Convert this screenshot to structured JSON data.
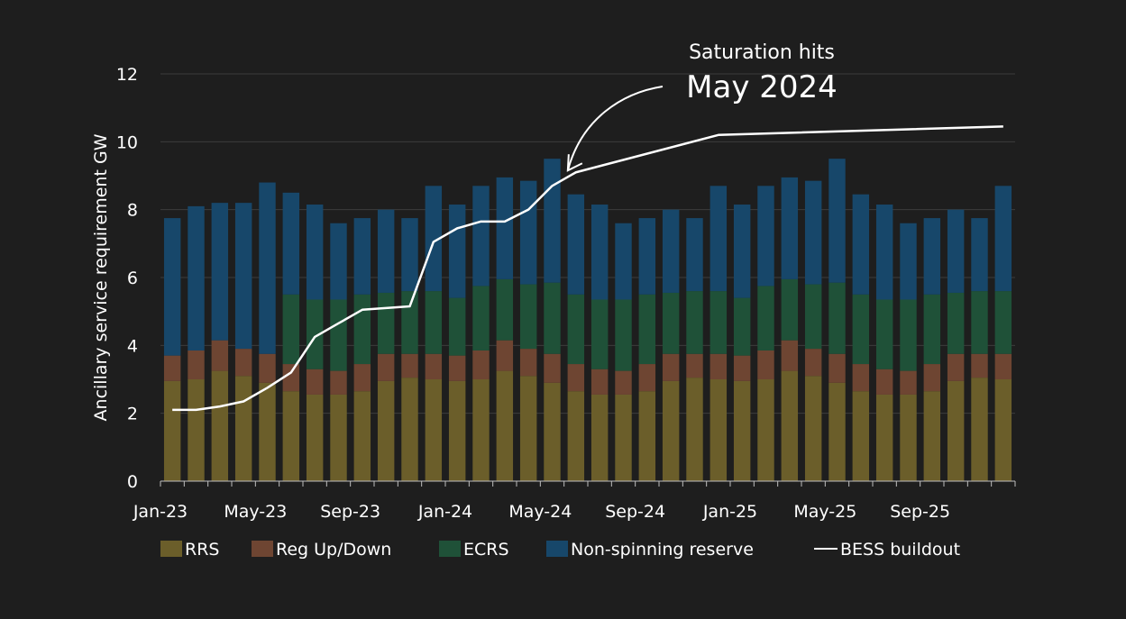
{
  "chart_data": {
    "type": "bar",
    "stacked": true,
    "ylabel": "Ancillary service requirement GW",
    "ylim": [
      0,
      12
    ],
    "yticks": [
      0,
      2,
      4,
      6,
      8,
      10,
      12
    ],
    "grid": true,
    "legend_position": "bottom",
    "categories": [
      "Jan-23",
      "Feb-23",
      "Mar-23",
      "Apr-23",
      "May-23",
      "Jun-23",
      "Jul-23",
      "Aug-23",
      "Sep-23",
      "Oct-23",
      "Nov-23",
      "Dec-23",
      "Jan-24",
      "Feb-24",
      "Mar-24",
      "Apr-24",
      "May-24",
      "Jun-24",
      "Jul-24",
      "Aug-24",
      "Sep-24",
      "Oct-24",
      "Nov-24",
      "Dec-24",
      "Jan-25",
      "Feb-25",
      "Mar-25",
      "Apr-25",
      "May-25",
      "Jun-25",
      "Jul-25",
      "Aug-25",
      "Sep-25",
      "Oct-25",
      "Nov-25",
      "Dec-25"
    ],
    "x_tick_labels": [
      {
        "index": 0,
        "label": "Jan-23"
      },
      {
        "index": 4,
        "label": "May-23"
      },
      {
        "index": 8,
        "label": "Sep-23"
      },
      {
        "index": 12,
        "label": "Jan-24"
      },
      {
        "index": 16,
        "label": "May-24"
      },
      {
        "index": 20,
        "label": "Sep-24"
      },
      {
        "index": 24,
        "label": "Jan-25"
      },
      {
        "index": 28,
        "label": "May-25"
      },
      {
        "index": 32,
        "label": "Sep-25"
      }
    ],
    "series": [
      {
        "name": "RRS",
        "color": "#6b5e2a",
        "values": [
          2.95,
          3.0,
          3.25,
          3.1,
          2.9,
          2.65,
          2.55,
          2.55,
          2.65,
          2.95,
          3.05,
          3.0,
          2.95,
          3.0,
          3.25,
          3.1,
          2.9,
          2.65,
          2.55,
          2.55,
          2.65,
          2.95,
          3.05,
          3.0,
          2.95,
          3.0,
          3.25,
          3.1,
          2.9,
          2.65,
          2.55,
          2.55,
          2.65,
          2.95,
          3.05,
          3.0
        ]
      },
      {
        "name": "Reg Up/Down",
        "color": "#6e4532",
        "values": [
          0.75,
          0.85,
          0.9,
          0.8,
          0.85,
          0.8,
          0.75,
          0.7,
          0.8,
          0.8,
          0.7,
          0.75,
          0.75,
          0.85,
          0.9,
          0.8,
          0.85,
          0.8,
          0.75,
          0.7,
          0.8,
          0.8,
          0.7,
          0.75,
          0.75,
          0.85,
          0.9,
          0.8,
          0.85,
          0.8,
          0.75,
          0.7,
          0.8,
          0.8,
          0.7,
          0.75
        ]
      },
      {
        "name": "ECRS",
        "color": "#1f5138",
        "values": [
          0,
          0,
          0,
          0,
          0,
          2.05,
          2.05,
          2.1,
          2.05,
          1.8,
          1.85,
          1.85,
          1.7,
          1.9,
          1.8,
          1.9,
          2.1,
          2.05,
          2.05,
          2.1,
          2.05,
          1.8,
          1.85,
          1.85,
          1.7,
          1.9,
          1.8,
          1.9,
          2.1,
          2.05,
          2.05,
          2.1,
          2.05,
          1.8,
          1.85,
          1.85
        ]
      },
      {
        "name": "Non-spinning reserve",
        "color": "#17476a",
        "values": [
          4.05,
          4.25,
          4.05,
          4.3,
          5.05,
          3.0,
          2.8,
          2.25,
          2.25,
          2.45,
          2.15,
          3.1,
          2.75,
          2.95,
          3.0,
          3.05,
          3.65,
          2.95,
          2.8,
          2.25,
          2.25,
          2.45,
          2.15,
          3.1,
          2.75,
          2.95,
          3.0,
          3.05,
          3.65,
          2.95,
          2.8,
          2.25,
          2.25,
          2.45,
          2.15,
          3.1
        ]
      }
    ],
    "line_series": {
      "name": "BESS buildout",
      "color": "#ffffff",
      "points": [
        {
          "x": 0,
          "y": 2.1
        },
        {
          "x": 1,
          "y": 2.1
        },
        {
          "x": 2,
          "y": 2.2
        },
        {
          "x": 3,
          "y": 2.35
        },
        {
          "x": 4,
          "y": 2.75
        },
        {
          "x": 5,
          "y": 3.2
        },
        {
          "x": 6,
          "y": 4.25
        },
        {
          "x": 7,
          "y": 4.65
        },
        {
          "x": 8,
          "y": 5.05
        },
        {
          "x": 9,
          "y": 5.1
        },
        {
          "x": 10,
          "y": 5.15
        },
        {
          "x": 11,
          "y": 7.05
        },
        {
          "x": 12,
          "y": 7.45
        },
        {
          "x": 13,
          "y": 7.65
        },
        {
          "x": 14,
          "y": 7.65
        },
        {
          "x": 15,
          "y": 8.0
        },
        {
          "x": 16,
          "y": 8.7
        },
        {
          "x": 17,
          "y": 9.1
        },
        {
          "x": 23,
          "y": 10.2
        },
        {
          "x": 35,
          "y": 10.45
        }
      ]
    },
    "annotation": {
      "line1": "Saturation hits",
      "line2": "May 2024",
      "points_to_index": 17
    }
  }
}
